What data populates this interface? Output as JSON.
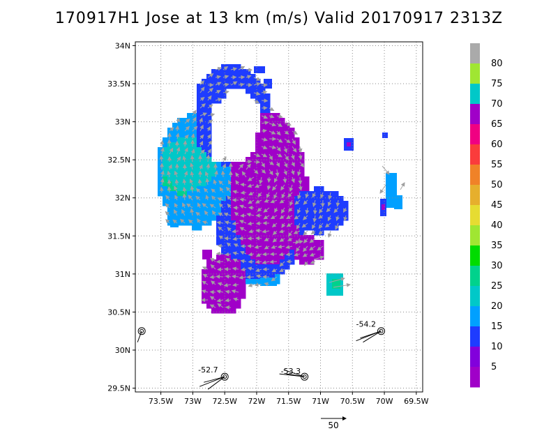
{
  "title": "170917H1 Jose at 13 km (m/s) Valid 20170917 2313Z",
  "chart_data": {
    "type": "heatmap",
    "title": "170917H1 Jose at 13 km (m/s) Valid 20170917 2313Z",
    "x_ticks": [
      "73.5W",
      "73W",
      "72.5W",
      "72W",
      "71.5W",
      "71W",
      "70.5W",
      "70W",
      "69.5W"
    ],
    "x_tick_values": [
      -73.5,
      -73.0,
      -72.5,
      -72.0,
      -71.5,
      -71.0,
      -70.5,
      -70.0,
      -69.5
    ],
    "y_ticks": [
      "29.5N",
      "30N",
      "30.5N",
      "31N",
      "31.5N",
      "32N",
      "32.5N",
      "33N",
      "33.5N",
      "34N"
    ],
    "y_tick_values": [
      29.5,
      30.0,
      30.5,
      31.0,
      31.5,
      32.0,
      32.5,
      33.0,
      33.5,
      34.0
    ],
    "xlim": [
      -73.9,
      -69.4
    ],
    "ylim": [
      29.45,
      34.05
    ],
    "grid": true,
    "colorbar": {
      "labels": [
        "5",
        "10",
        "15",
        "20",
        "25",
        "30",
        "35",
        "40",
        "45",
        "50",
        "55",
        "60",
        "65",
        "70",
        "75",
        "80"
      ],
      "levels": [
        5,
        10,
        15,
        20,
        25,
        30,
        35,
        40,
        45,
        50,
        55,
        60,
        65,
        70,
        75,
        80
      ],
      "colors": [
        "#a000c8",
        "#8200dc",
        "#1e3cff",
        "#00a0ff",
        "#00c8c8",
        "#00d28c",
        "#00dc00",
        "#a0e632",
        "#e6dc32",
        "#e6af2d",
        "#f08228",
        "#fa3c3c",
        "#f00082",
        "#a000c8",
        "#00c8c8",
        "#a0e632",
        "#aaaaaa"
      ]
    },
    "wind_field": {
      "colors": {
        "c10": "#1e3cff",
        "c15": "#00a0ff",
        "c20": "#00c8c8",
        "c25": "#00d28c",
        "c70": "#a000c8"
      },
      "regions": [
        {
          "range_m_s": "15-20",
          "lon": [
            -73.45,
            -72.45
          ],
          "lat": [
            31.6,
            32.9
          ]
        },
        {
          "range_m_s": "20-25",
          "lon": [
            -73.3,
            -72.5
          ],
          "lat": [
            32.0,
            32.55
          ]
        },
        {
          "range_m_s": "70-75",
          "lon": [
            -72.05,
            -70.95
          ],
          "lat": [
            31.5,
            32.85
          ]
        },
        {
          "range_m_s": "70-75",
          "lon": [
            -72.65,
            -71.9
          ],
          "lat": [
            30.5,
            31.45
          ]
        },
        {
          "range_m_s": "10-15",
          "lon": [
            -72.5,
            -71.9
          ],
          "lat": [
            32.75,
            33.65
          ]
        },
        {
          "range_m_s": "10-15",
          "lon": [
            -71.2,
            -70.4
          ],
          "lat": [
            31.45,
            31.95
          ]
        }
      ],
      "vector_scale_label": "50"
    },
    "ship_obs": [
      {
        "label": "-52.7",
        "lon": -72.5,
        "lat": 29.65
      },
      {
        "label": "-53.3",
        "lon": -71.25,
        "lat": 29.65
      },
      {
        "label": "-54.2",
        "lon": -70.05,
        "lat": 30.25
      },
      {
        "label": "",
        "lon": -73.8,
        "lat": 30.25
      }
    ]
  }
}
